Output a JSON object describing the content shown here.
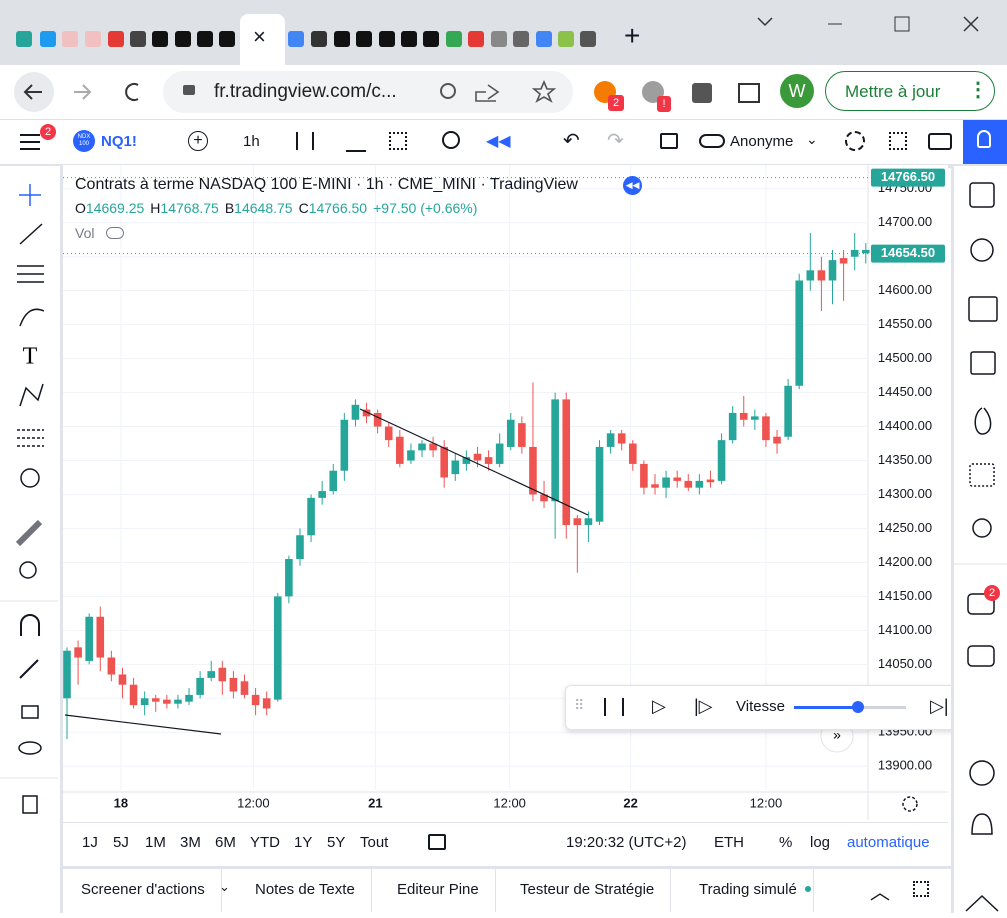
{
  "browser": {
    "url": "fr.tradingview.com/c...",
    "extension_badge": "2",
    "profile": "W",
    "update_button": "Mettre à jour"
  },
  "toolbar": {
    "menu_badge": "2",
    "symbol_icon": [
      "NDX",
      "100"
    ],
    "symbol": "NQ1!",
    "interval": "1h",
    "account": "Anonyme"
  },
  "chart_data": {
    "type": "candlestick",
    "title": "Contrats à terme NASDAQ 100 E-MINI · 1h · CME_MINI · TradingView",
    "ohlc_legend": [
      {
        "key": "O",
        "value": "14669.25"
      },
      {
        "key": "H",
        "value": "14768.75"
      },
      {
        "key": "B",
        "value": "14648.75"
      },
      {
        "key": "C",
        "value": "14766.50"
      }
    ],
    "change": "+97.50 (+0.66%)",
    "volume_label": "Vol",
    "up_color": "#26a69a",
    "down_color": "#ef5350",
    "candles": [
      [
        14000,
        14075,
        13940,
        14070
      ],
      [
        14075,
        14085,
        14020,
        14060
      ],
      [
        14055,
        14125,
        14050,
        14120
      ],
      [
        14120,
        14135,
        14040,
        14060
      ],
      [
        14060,
        14070,
        14025,
        14035
      ],
      [
        14035,
        14045,
        14000,
        14020
      ],
      [
        14020,
        14030,
        13985,
        13990
      ],
      [
        13990,
        14010,
        13975,
        14000
      ],
      [
        14000,
        14005,
        13980,
        13995
      ],
      [
        13998,
        14005,
        13985,
        13992
      ],
      [
        13992,
        14005,
        13985,
        13998
      ],
      [
        13995,
        14015,
        13990,
        14005
      ],
      [
        14005,
        14040,
        14000,
        14030
      ],
      [
        14030,
        14055,
        14025,
        14040
      ],
      [
        14045,
        14055,
        14005,
        14025
      ],
      [
        14030,
        14040,
        14000,
        14010
      ],
      [
        14025,
        14035,
        14000,
        14005
      ],
      [
        14005,
        14015,
        13975,
        13990
      ],
      [
        14000,
        14010,
        13975,
        13985
      ],
      [
        13998,
        14155,
        13995,
        14150
      ],
      [
        14150,
        14210,
        14140,
        14205
      ],
      [
        14205,
        14250,
        14195,
        14240
      ],
      [
        14240,
        14300,
        14230,
        14295
      ],
      [
        14295,
        14320,
        14285,
        14305
      ],
      [
        14305,
        14345,
        14300,
        14335
      ],
      [
        14335,
        14420,
        14320,
        14410
      ],
      [
        14410,
        14440,
        14400,
        14432
      ],
      [
        14425,
        14435,
        14405,
        14415
      ],
      [
        14420,
        14425,
        14390,
        14400
      ],
      [
        14400,
        14405,
        14370,
        14380
      ],
      [
        14385,
        14395,
        14340,
        14345
      ],
      [
        14350,
        14375,
        14345,
        14365
      ],
      [
        14365,
        14380,
        14355,
        14375
      ],
      [
        14375,
        14385,
        14355,
        14365
      ],
      [
        14370,
        14380,
        14310,
        14325
      ],
      [
        14330,
        14360,
        14320,
        14350
      ],
      [
        14345,
        14365,
        14335,
        14355
      ],
      [
        14360,
        14370,
        14340,
        14350
      ],
      [
        14355,
        14365,
        14335,
        14345
      ],
      [
        14345,
        14390,
        14340,
        14375
      ],
      [
        14370,
        14420,
        14365,
        14410
      ],
      [
        14405,
        14415,
        14360,
        14370
      ],
      [
        14370,
        14465,
        14290,
        14300
      ],
      [
        14300,
        14320,
        14280,
        14290
      ],
      [
        14290,
        14450,
        14235,
        14440
      ],
      [
        14440,
        14450,
        14235,
        14255
      ],
      [
        14265,
        14270,
        14185,
        14255
      ],
      [
        14255,
        14275,
        14230,
        14265
      ],
      [
        14260,
        14380,
        14255,
        14370
      ],
      [
        14370,
        14395,
        14360,
        14390
      ],
      [
        14390,
        14395,
        14365,
        14375
      ],
      [
        14375,
        14380,
        14335,
        14345
      ],
      [
        14345,
        14350,
        14300,
        14310
      ],
      [
        14315,
        14330,
        14300,
        14310
      ],
      [
        14310,
        14335,
        14295,
        14325
      ],
      [
        14325,
        14335,
        14310,
        14320
      ],
      [
        14320,
        14330,
        14305,
        14310
      ],
      [
        14310,
        14330,
        14300,
        14320
      ],
      [
        14322,
        14335,
        14310,
        14318
      ],
      [
        14320,
        14390,
        14315,
        14380
      ],
      [
        14380,
        14430,
        14375,
        14420
      ],
      [
        14420,
        14445,
        14400,
        14410
      ],
      [
        14410,
        14425,
        14395,
        14415
      ],
      [
        14415,
        14420,
        14370,
        14380
      ],
      [
        14385,
        14395,
        14360,
        14375
      ],
      [
        14385,
        14470,
        14380,
        14460
      ],
      [
        14460,
        14625,
        14455,
        14615
      ],
      [
        14615,
        14685,
        14600,
        14630
      ],
      [
        14630,
        14650,
        14570,
        14615
      ],
      [
        14615,
        14660,
        14580,
        14645
      ],
      [
        14648,
        14660,
        14585,
        14640
      ],
      [
        14650,
        14685,
        14630,
        14660
      ],
      [
        14655,
        14670,
        14640,
        14660
      ]
    ],
    "xlim": [
      -0.36,
      72.2
    ],
    "xticks": [
      {
        "value": 4.86,
        "label": "18"
      },
      {
        "value": 16.8,
        "label": "12:00"
      },
      {
        "value": 27.8,
        "label": "21"
      },
      {
        "value": 39.9,
        "label": "12:00"
      },
      {
        "value": 50.8,
        "label": "22"
      },
      {
        "value": 63,
        "label": "12:00"
      }
    ],
    "ylim": [
      13865,
      14785
    ],
    "yticks": [
      {
        "value": 13900,
        "label": "13900.00"
      },
      {
        "value": 13950,
        "label": "13950.00"
      },
      {
        "value": 14000,
        "label": "14000.00"
      },
      {
        "value": 14050,
        "label": "14050.00"
      },
      {
        "value": 14100,
        "label": "14100.00"
      },
      {
        "value": 14150,
        "label": "14150.00"
      },
      {
        "value": 14200,
        "label": "14200.00"
      },
      {
        "value": 14250,
        "label": "14250.00"
      },
      {
        "value": 14300,
        "label": "14300.00"
      },
      {
        "value": 14350,
        "label": "14350.00"
      },
      {
        "value": 14400,
        "label": "14400.00"
      },
      {
        "value": 14450,
        "label": "14450.00"
      },
      {
        "value": 14500,
        "label": "14500.00"
      },
      {
        "value": 14550,
        "label": "14550.00"
      },
      {
        "value": 14600,
        "label": "14600.00"
      },
      {
        "value": 14650,
        "label": "14650.00"
      },
      {
        "value": 14700,
        "label": "14700.00"
      },
      {
        "value": 14750,
        "label": "14750.00"
      }
    ],
    "price_tags": [
      {
        "value": 14766.5,
        "label": "14766.50"
      },
      {
        "value": 14654.5,
        "label": "14654.50"
      }
    ],
    "grid": true
  },
  "range_bar": {
    "ranges": [
      "1J",
      "5J",
      "1M",
      "3M",
      "6M",
      "YTD",
      "1Y",
      "5Y",
      "Tout"
    ],
    "time": "19:20:32 (UTC+2)",
    "session": "ETH",
    "percent": "%",
    "log": "log",
    "auto": "automatique"
  },
  "replay": {
    "speed_label": "Vitesse"
  },
  "bottom_tabs": [
    "Screener d'actions",
    "Notes de Texte",
    "Editeur Pine",
    "Testeur de Stratégie",
    "Trading simulé"
  ],
  "sidebar_badge": "2"
}
